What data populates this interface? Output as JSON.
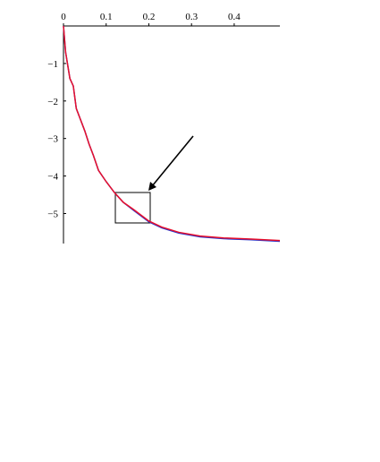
{
  "chart_data": {
    "type": "line",
    "x": [
      0,
      0.005,
      0.015,
      0.023,
      0.03,
      0.04,
      0.05,
      0.06,
      0.07,
      0.082,
      0.1,
      0.12,
      0.14,
      0.165,
      0.2,
      0.23,
      0.27,
      0.32,
      0.375,
      0.44,
      0.507
    ],
    "series": [
      {
        "color": "#2233cc",
        "values": [
          0,
          -0.7,
          -1.4,
          -1.6,
          -2.2,
          -2.5,
          -2.8,
          -3.15,
          -3.45,
          -3.85,
          -4.15,
          -4.45,
          -4.7,
          -4.92,
          -5.22,
          -5.38,
          -5.52,
          -5.62,
          -5.67,
          -5.7,
          -5.74
        ]
      },
      {
        "color": "#e8102c",
        "values": [
          0,
          -0.7,
          -1.4,
          -1.6,
          -2.2,
          -2.5,
          -2.8,
          -3.15,
          -3.45,
          -3.85,
          -4.15,
          -4.45,
          -4.7,
          -4.9,
          -5.2,
          -5.36,
          -5.5,
          -5.6,
          -5.65,
          -5.68,
          -5.72
        ]
      }
    ],
    "xlim": [
      0,
      0.507
    ],
    "ylim": [
      -5.8,
      0
    ],
    "xticks": [
      0,
      0.1,
      0.2,
      0.3,
      0.4
    ],
    "yticks": [
      {
        "value": -1,
        "label": "−1"
      },
      {
        "value": -2,
        "label": "−2"
      },
      {
        "value": -3,
        "label": "−3"
      },
      {
        "value": -4,
        "label": "−4"
      },
      {
        "value": -5,
        "label": "−5"
      }
    ],
    "grid": false
  }
}
